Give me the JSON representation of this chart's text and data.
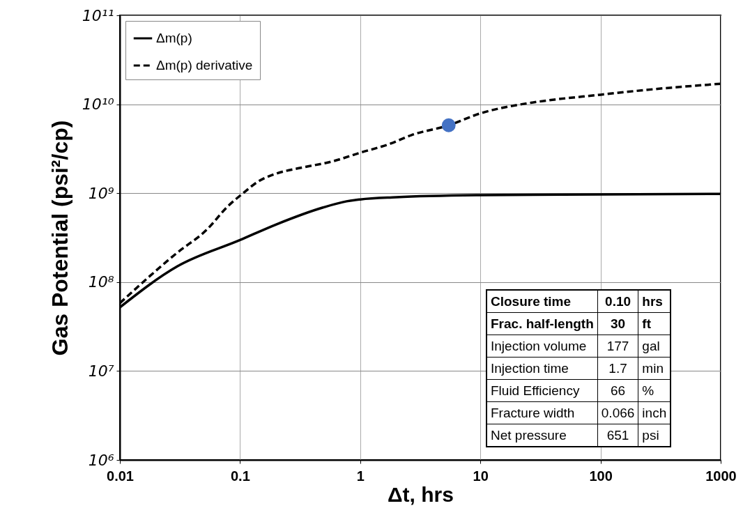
{
  "chart_data": {
    "type": "line",
    "xlabel": "Δt, hrs",
    "ylabel": "Gas Potential (psi²/cp)",
    "log": "xy",
    "grid": true,
    "legend": "top left",
    "xlim": [
      0.01,
      1000
    ],
    "xticks": [
      0.01,
      0.1,
      1,
      10,
      100,
      1000
    ],
    "ylim": [
      1000000,
      100000000000
    ],
    "yticks": [
      {
        "value": 1000000,
        "label": "10⁶"
      },
      {
        "value": 10000000,
        "label": "10⁷"
      },
      {
        "value": 100000000,
        "label": "10⁸"
      },
      {
        "value": 1000000000,
        "label": "10⁹"
      },
      {
        "value": 10000000000,
        "label": "10¹⁰"
      },
      {
        "value": 100000000000,
        "label": "10¹¹"
      }
    ],
    "series": [
      {
        "name": "Δm(p)",
        "color": "#000000",
        "line_style": "solid",
        "x": [
          0.01,
          0.03,
          0.1,
          0.2,
          0.49,
          0.77,
          1,
          2,
          10,
          100,
          1000
        ],
        "values": [
          52000000,
          150000000,
          297000000,
          445000000,
          690000000,
          810000000,
          850000000,
          900000000,
          950000000,
          970000000,
          980000000
        ]
      },
      {
        "name": "Δm(p) derivative",
        "color": "#000000",
        "line_style": "dashed",
        "x": [
          0.01,
          0.03,
          0.053,
          0.079,
          0.108,
          0.14,
          0.2,
          0.315,
          0.59,
          1,
          1.78,
          2.67,
          5.45,
          10,
          22,
          30.5,
          100,
          240,
          1000
        ],
        "values": [
          58000000,
          214000000,
          390000000,
          710000000,
          1020000000,
          1340000000,
          1660000000,
          1920000000,
          2280000000,
          2850000000,
          3600000000,
          4500000000,
          5800000000,
          7900000000,
          10000000000,
          10700000000,
          12800000000,
          14500000000,
          17000000000
        ]
      },
      {
        "type": "scatter",
        "color": "#4472c4",
        "x": [
          5.45
        ],
        "values": [
          5800000000
        ]
      }
    ],
    "annotations": [
      "Closure time",
      "0.10",
      "hrs",
      "Frac. half-length",
      "30",
      "ft",
      "Injection volume",
      "177",
      "gal",
      "Injection time",
      "1.7",
      "min",
      "Fluid Efficiency",
      "66",
      "%",
      "Fracture width",
      "0.066",
      "inch",
      "Net pressure",
      "651",
      "psi"
    ]
  }
}
